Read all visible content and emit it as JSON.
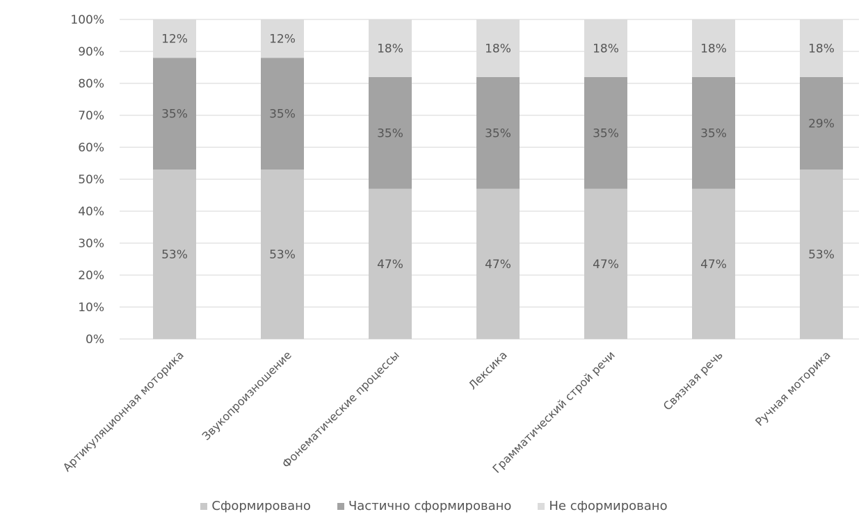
{
  "chart_data": {
    "type": "bar",
    "stacked": true,
    "percent": true,
    "title": "",
    "xlabel": "",
    "ylabel": "",
    "ylim": [
      0,
      100
    ],
    "y_ticks": [
      "0%",
      "10%",
      "20%",
      "30%",
      "40%",
      "50%",
      "60%",
      "70%",
      "80%",
      "90%",
      "100%"
    ],
    "grid": true,
    "legend_position": "bottom",
    "categories": [
      "Артикуляционная моторика",
      "Звукопроизношение",
      "Фонематические процессы",
      "Лексика",
      "Грамматический строй речи",
      "Связная речь",
      "Ручная моторика"
    ],
    "series": [
      {
        "name": "Сформировано",
        "color": "#c9c9c9",
        "values": [
          53,
          53,
          47,
          47,
          47,
          47,
          53
        ],
        "labels": [
          "53%",
          "53%",
          "47%",
          "47%",
          "47%",
          "47%",
          "53%"
        ]
      },
      {
        "name": "Частично сформировано",
        "color": "#a3a3a3",
        "values": [
          35,
          35,
          35,
          35,
          35,
          35,
          29
        ],
        "labels": [
          "35%",
          "35%",
          "35%",
          "35%",
          "35%",
          "35%",
          "29%"
        ]
      },
      {
        "name": "Не сформировано",
        "color": "#dcdcdc",
        "values": [
          12,
          12,
          18,
          18,
          18,
          18,
          18
        ],
        "labels": [
          "12%",
          "12%",
          "18%",
          "18%",
          "18%",
          "18%",
          "18%"
        ]
      }
    ]
  }
}
